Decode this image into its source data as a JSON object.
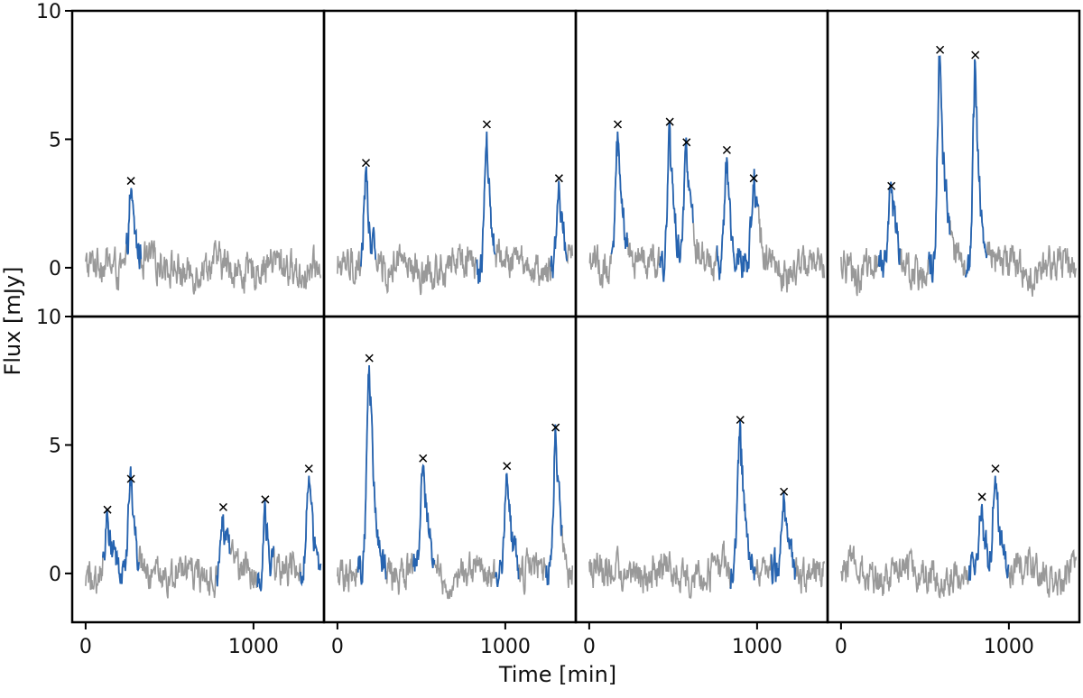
{
  "chart_data": {
    "type": "line",
    "layout": "2x4 small multiples, shared axes",
    "xlabel": "Time [min]",
    "ylabel": "Flux [mJy]",
    "xlim": [
      -80,
      1420
    ],
    "ylim": [
      -1.9,
      10
    ],
    "xticks": [
      0,
      1000
    ],
    "yticks": [
      0,
      5,
      10
    ],
    "colors": {
      "baseline": "#999999",
      "flare": "#2563b0",
      "peak_marker": "#000000"
    },
    "panels": [
      {
        "row": 0,
        "col": 0,
        "peaks": [
          {
            "x": 270,
            "y": 3.1
          }
        ],
        "flare_segments": [
          [
            240,
            330
          ]
        ]
      },
      {
        "row": 0,
        "col": 1,
        "peaks": [
          {
            "x": 170,
            "y": 3.8
          },
          {
            "x": 890,
            "y": 5.3
          },
          {
            "x": 1320,
            "y": 3.2
          }
        ],
        "flare_segments": [
          [
            140,
            230
          ],
          [
            830,
            940
          ],
          [
            1270,
            1370
          ]
        ]
      },
      {
        "row": 0,
        "col": 2,
        "peaks": [
          {
            "x": 170,
            "y": 5.3
          },
          {
            "x": 480,
            "y": 5.4
          },
          {
            "x": 580,
            "y": 4.6
          },
          {
            "x": 820,
            "y": 4.3
          },
          {
            "x": 980,
            "y": 3.2
          }
        ],
        "flare_segments": [
          [
            130,
            230
          ],
          [
            420,
            620
          ],
          [
            760,
            1010
          ]
        ]
      },
      {
        "row": 0,
        "col": 3,
        "peaks": [
          {
            "x": 300,
            "y": 2.9
          },
          {
            "x": 590,
            "y": 8.2
          },
          {
            "x": 800,
            "y": 8.0
          }
        ],
        "flare_segments": [
          [
            220,
            350
          ],
          [
            520,
            650
          ],
          [
            740,
            870
          ]
        ]
      },
      {
        "row": 1,
        "col": 0,
        "peaks": [
          {
            "x": 130,
            "y": 2.2
          },
          {
            "x": 270,
            "y": 3.4
          },
          {
            "x": 820,
            "y": 2.3
          },
          {
            "x": 1070,
            "y": 2.6
          },
          {
            "x": 1330,
            "y": 3.8
          }
        ],
        "flare_segments": [
          [
            100,
            320
          ],
          [
            780,
            860
          ],
          [
            1020,
            1120
          ],
          [
            1280,
            1420
          ]
        ]
      },
      {
        "row": 1,
        "col": 1,
        "peaks": [
          {
            "x": 190,
            "y": 8.1
          },
          {
            "x": 510,
            "y": 4.2
          },
          {
            "x": 1010,
            "y": 3.9
          },
          {
            "x": 1300,
            "y": 5.4
          }
        ],
        "flare_segments": [
          [
            120,
            290
          ],
          [
            450,
            580
          ],
          [
            940,
            1080
          ],
          [
            1240,
            1340
          ]
        ]
      },
      {
        "row": 1,
        "col": 2,
        "peaks": [
          {
            "x": 900,
            "y": 5.7
          },
          {
            "x": 1160,
            "y": 2.9
          }
        ],
        "flare_segments": [
          [
            840,
            990
          ],
          [
            1080,
            1230
          ]
        ]
      },
      {
        "row": 1,
        "col": 3,
        "peaks": [
          {
            "x": 840,
            "y": 2.7
          },
          {
            "x": 920,
            "y": 3.8
          }
        ],
        "flare_segments": [
          [
            760,
            1000
          ]
        ]
      }
    ]
  }
}
